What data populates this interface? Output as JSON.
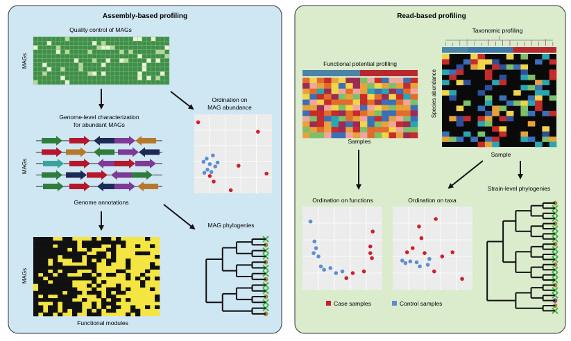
{
  "left_panel": {
    "title": "Assembly-based profiling",
    "quality_title": "Quality control of MAGs",
    "mags_label": "MAGs",
    "genome_char_line1": "Genome-level characterization",
    "genome_char_line2": "for abundant MAGs",
    "genome_annotations": "Genome annotations",
    "ordination_line1": "Ordination on",
    "ordination_line2": "MAG abundance",
    "phylogenies": "MAG phylogenies",
    "functional_modules": "Functional modules"
  },
  "right_panel": {
    "title": "Read-based profiling",
    "taxonomic_profiling": "Taxonomic profiling",
    "functional_potential": "Functional potential profiling",
    "samples": "Samples",
    "species_abundance": "Species abundance",
    "sample": "Sample",
    "ordination_functions": "Ordination on functions",
    "ordination_taxa": "Ordination on taxa",
    "strain_phylogenies": "Strain-level phylogenies",
    "legend_case": "Case samples",
    "legend_control": "Control samples"
  },
  "colors": {
    "left_bg": "#cfe6f3",
    "right_bg": "#dbeccd",
    "case": "#cc2030",
    "control": "#5b8fd1",
    "qc_green": "#3f8f4a",
    "module_yellow": "#f4e542"
  }
}
